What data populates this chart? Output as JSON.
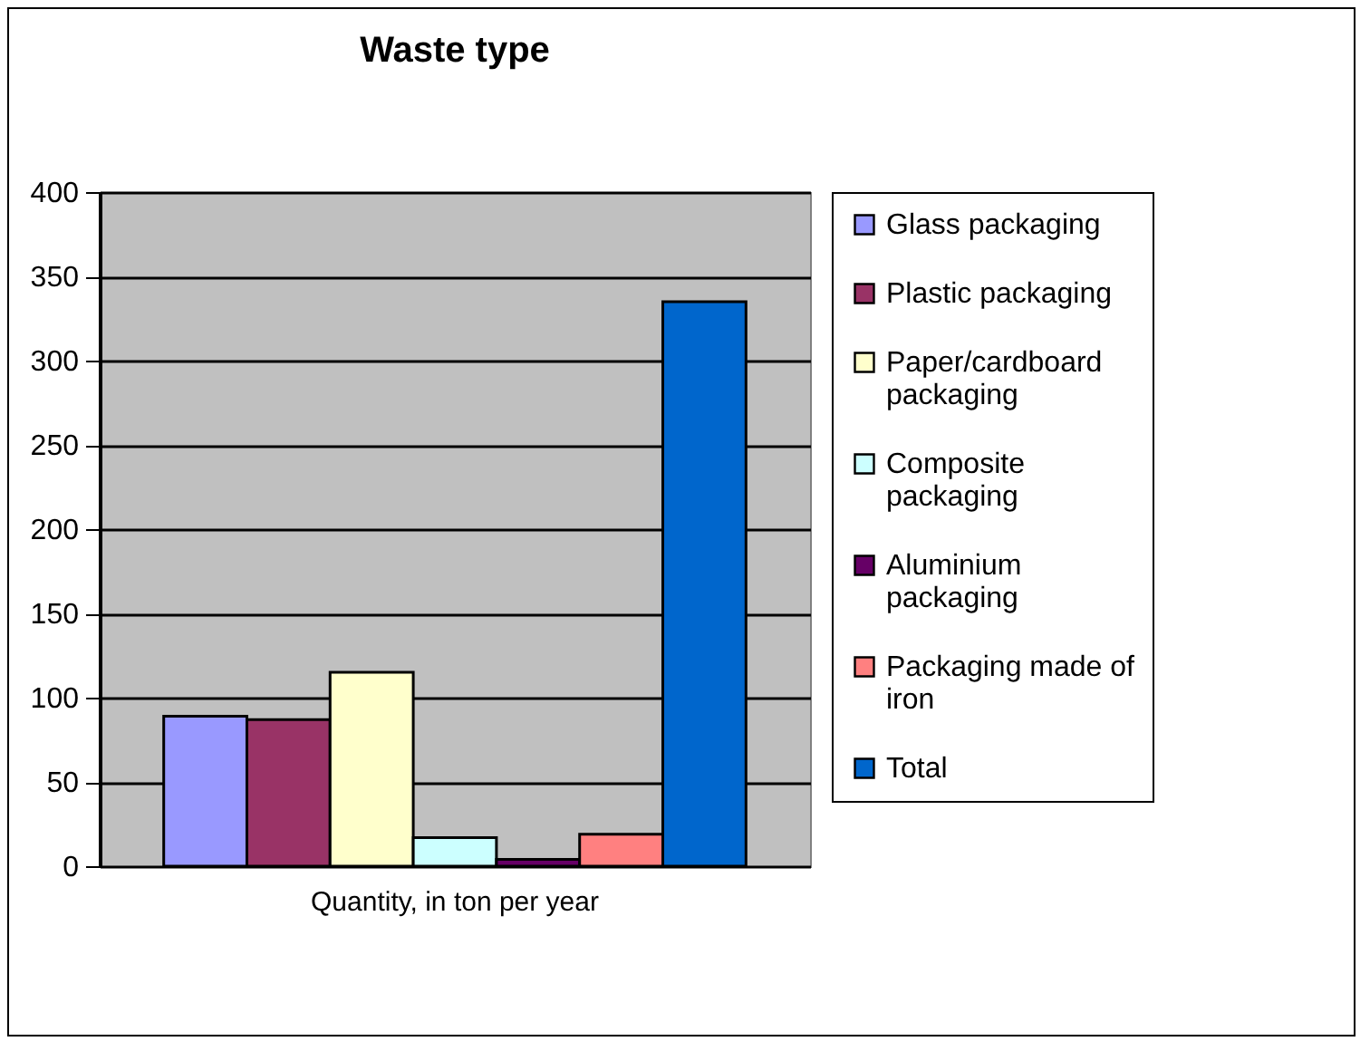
{
  "chart_data": {
    "type": "bar",
    "title": "Waste type",
    "categories": [
      "Quantity, in ton per year"
    ],
    "series": [
      {
        "name": "Glass packaging",
        "color": "#9999ff",
        "values": [
          89
        ]
      },
      {
        "name": "Plastic packaging",
        "color": "#993366",
        "values": [
          87
        ]
      },
      {
        "name": "Paper/cardboard packaging",
        "color": "#ffffcc",
        "values": [
          115
        ]
      },
      {
        "name": "Composite packaging",
        "color": "#ccffff",
        "values": [
          17
        ]
      },
      {
        "name": "Aluminium packaging",
        "color": "#660066",
        "values": [
          4
        ]
      },
      {
        "name": "Packaging made of iron",
        "color": "#ff8080",
        "values": [
          19
        ]
      },
      {
        "name": "Total",
        "color": "#0066cc",
        "values": [
          335
        ]
      }
    ],
    "ylim": [
      0,
      400
    ],
    "yticks": [
      0,
      50,
      100,
      150,
      200,
      250,
      300,
      350,
      400
    ],
    "grid": "y",
    "legend": "right"
  }
}
